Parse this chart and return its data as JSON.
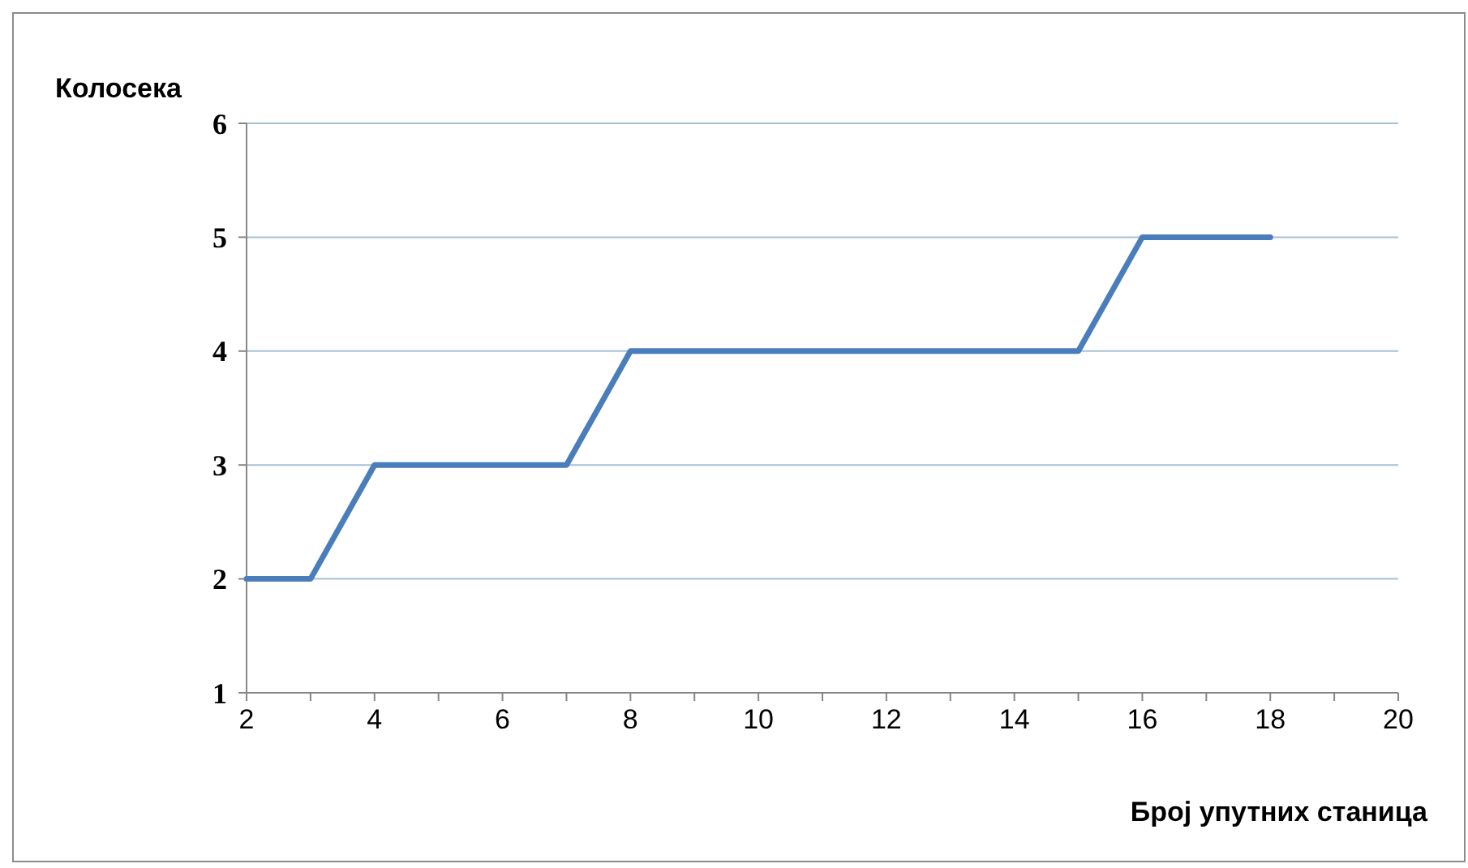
{
  "chart_data": {
    "type": "line",
    "xlabel": "Број упутних станица",
    "ylabel": "Колосека",
    "x": [
      2,
      3,
      4,
      7,
      8,
      15,
      16,
      18
    ],
    "series": [
      {
        "color": "#4a7ebb",
        "values": [
          2,
          2,
          3,
          3,
          4,
          4,
          5,
          5
        ]
      }
    ],
    "xlim": [
      2,
      20
    ],
    "xticks": [
      2,
      {
        "value": 3,
        "label": null
      },
      4,
      {
        "value": 5,
        "label": null
      },
      6,
      {
        "value": 7,
        "label": null
      },
      8,
      {
        "value": 9,
        "label": null
      },
      10,
      {
        "value": 11,
        "label": null
      },
      12,
      {
        "value": 13,
        "label": null
      },
      14,
      {
        "value": 15,
        "label": null
      },
      16,
      {
        "value": 17,
        "label": null
      },
      18,
      {
        "value": 19,
        "label": null
      },
      20
    ],
    "ylim": [
      1,
      6
    ],
    "yticks": [
      1,
      2,
      3,
      4,
      5,
      6
    ],
    "grid": "y",
    "marker": "none",
    "line_style": "solid"
  }
}
